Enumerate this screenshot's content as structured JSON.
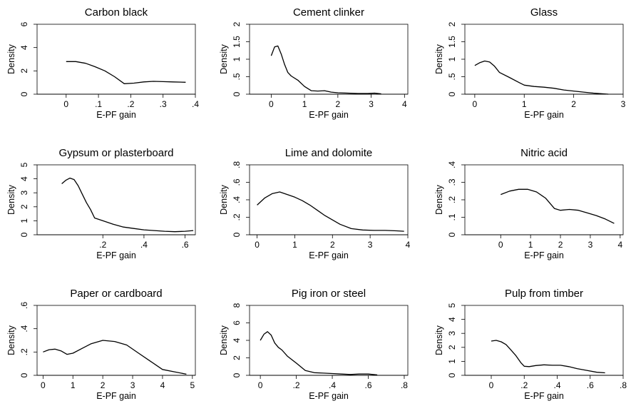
{
  "chart_data": [
    {
      "type": "line",
      "title": "Carbon black",
      "xlabel": "E-PF gain",
      "ylabel": "Density",
      "xlim": [
        -0.09,
        0.4
      ],
      "ylim": [
        0,
        6
      ],
      "xticks": [
        0,
        0.1,
        0.2,
        0.3,
        0.4
      ],
      "xtick_labels": [
        "0",
        ".1",
        ".2",
        ".3",
        ".4"
      ],
      "yticks": [
        0,
        2,
        4,
        6
      ],
      "ytick_labels": [
        "0",
        "2",
        "4",
        "6"
      ],
      "series": [
        {
          "x": [
            0,
            0.03,
            0.06,
            0.09,
            0.12,
            0.15,
            0.18,
            0.21,
            0.24,
            0.27,
            0.3,
            0.33,
            0.37
          ],
          "y": [
            2.8,
            2.8,
            2.65,
            2.35,
            2.0,
            1.5,
            0.9,
            0.95,
            1.05,
            1.1,
            1.08,
            1.05,
            1.02
          ]
        }
      ]
    },
    {
      "type": "line",
      "title": "Cement clinker",
      "xlabel": "E-PF gain",
      "ylabel": "Density",
      "xlim": [
        -0.65,
        4.1
      ],
      "ylim": [
        0,
        2
      ],
      "xticks": [
        0,
        1,
        2,
        3,
        4
      ],
      "xtick_labels": [
        "0",
        "1",
        "2",
        "3",
        "4"
      ],
      "yticks": [
        0,
        0.5,
        1,
        1.5,
        2
      ],
      "ytick_labels": [
        "0",
        ".5",
        "1",
        "1.5",
        "2"
      ],
      "series": [
        {
          "x": [
            0,
            0.1,
            0.2,
            0.3,
            0.4,
            0.5,
            0.6,
            0.8,
            1.0,
            1.2,
            1.4,
            1.6,
            1.8,
            2.0,
            2.3,
            2.6,
            2.9,
            3.1,
            3.3
          ],
          "y": [
            1.1,
            1.35,
            1.38,
            1.15,
            0.85,
            0.62,
            0.52,
            0.4,
            0.22,
            0.1,
            0.09,
            0.1,
            0.06,
            0.04,
            0.03,
            0.02,
            0.02,
            0.03,
            0.01
          ]
        }
      ]
    },
    {
      "type": "line",
      "title": "Glass",
      "xlabel": "E-PF gain",
      "ylabel": "Density",
      "xlim": [
        -0.2,
        3.0
      ],
      "ylim": [
        0,
        2
      ],
      "xticks": [
        0,
        1,
        2,
        3
      ],
      "xtick_labels": [
        "0",
        "1",
        "2",
        "3"
      ],
      "yticks": [
        0,
        0.5,
        1,
        1.5,
        2
      ],
      "ytick_labels": [
        "0",
        ".5",
        "1",
        "1.5",
        "2"
      ],
      "series": [
        {
          "x": [
            0,
            0.1,
            0.2,
            0.3,
            0.4,
            0.5,
            0.7,
            0.9,
            1.0,
            1.2,
            1.4,
            1.6,
            1.8,
            2.0,
            2.2,
            2.4,
            2.7
          ],
          "y": [
            0.82,
            0.9,
            0.95,
            0.92,
            0.8,
            0.62,
            0.48,
            0.33,
            0.26,
            0.22,
            0.2,
            0.17,
            0.12,
            0.09,
            0.06,
            0.03,
            0.0
          ]
        }
      ]
    },
    {
      "type": "line",
      "title": "Gypsum or plasterboard",
      "xlabel": "E-PF gain",
      "ylabel": "Density",
      "xlim": [
        -0.12,
        0.65
      ],
      "ylim": [
        0,
        5
      ],
      "xticks": [
        0.2,
        0.4,
        0.6
      ],
      "xtick_labels": [
        ".2",
        ".4",
        ".6"
      ],
      "yticks": [
        0,
        1,
        2,
        3,
        4,
        5
      ],
      "ytick_labels": [
        "0",
        "1",
        "2",
        "3",
        "4",
        "5"
      ],
      "series": [
        {
          "x": [
            0,
            0.02,
            0.04,
            0.06,
            0.08,
            0.1,
            0.12,
            0.14,
            0.16,
            0.2,
            0.25,
            0.3,
            0.35,
            0.4,
            0.45,
            0.5,
            0.55,
            0.6,
            0.64
          ],
          "y": [
            3.65,
            3.9,
            4.05,
            3.95,
            3.5,
            2.9,
            2.3,
            1.8,
            1.2,
            1.0,
            0.75,
            0.55,
            0.45,
            0.35,
            0.3,
            0.25,
            0.22,
            0.25,
            0.3
          ]
        }
      ]
    },
    {
      "type": "line",
      "title": "Lime and dolomite",
      "xlabel": "E-PF gain",
      "ylabel": "Density",
      "xlim": [
        -0.2,
        4.0
      ],
      "ylim": [
        0,
        0.8
      ],
      "xticks": [
        0,
        1,
        2,
        3,
        4
      ],
      "xtick_labels": [
        "0",
        "1",
        "2",
        "3",
        "4"
      ],
      "yticks": [
        0,
        0.2,
        0.4,
        0.6,
        0.8
      ],
      "ytick_labels": [
        "0",
        ".2",
        ".4",
        ".6",
        ".8"
      ],
      "series": [
        {
          "x": [
            0,
            0.2,
            0.4,
            0.6,
            0.8,
            1.0,
            1.2,
            1.4,
            1.6,
            1.8,
            2.0,
            2.2,
            2.5,
            2.8,
            3.1,
            3.4,
            3.7,
            3.9
          ],
          "y": [
            0.34,
            0.42,
            0.47,
            0.49,
            0.46,
            0.43,
            0.39,
            0.34,
            0.28,
            0.22,
            0.17,
            0.12,
            0.07,
            0.055,
            0.05,
            0.05,
            0.045,
            0.04
          ]
        }
      ]
    },
    {
      "type": "line",
      "title": "Nitric acid",
      "xlabel": "E-PF gain",
      "ylabel": "Density",
      "xlim": [
        -1.2,
        4.1
      ],
      "ylim": [
        0,
        0.4
      ],
      "xticks": [
        0,
        1,
        2,
        3,
        4
      ],
      "xtick_labels": [
        "0",
        "1",
        "2",
        "3",
        "4"
      ],
      "yticks": [
        0,
        0.1,
        0.2,
        0.3,
        0.4
      ],
      "ytick_labels": [
        "0",
        ".1",
        ".2",
        ".3",
        ".4"
      ],
      "series": [
        {
          "x": [
            0,
            0.3,
            0.6,
            0.9,
            1.2,
            1.5,
            1.8,
            2.0,
            2.3,
            2.6,
            2.9,
            3.2,
            3.5,
            3.8
          ],
          "y": [
            0.23,
            0.25,
            0.26,
            0.26,
            0.245,
            0.21,
            0.15,
            0.14,
            0.145,
            0.14,
            0.125,
            0.11,
            0.09,
            0.065
          ]
        }
      ]
    },
    {
      "type": "line",
      "title": "Paper or cardboard",
      "xlabel": "E-PF gain",
      "ylabel": "Density",
      "xlim": [
        -0.2,
        5.1
      ],
      "ylim": [
        0,
        0.6
      ],
      "xticks": [
        0,
        1,
        2,
        3,
        4,
        5
      ],
      "xtick_labels": [
        "0",
        "1",
        "2",
        "3",
        "4",
        "5"
      ],
      "yticks": [
        0,
        0.2,
        0.4,
        0.6
      ],
      "ytick_labels": [
        "0",
        ".2",
        ".4",
        ".6"
      ],
      "series": [
        {
          "x": [
            0,
            0.2,
            0.4,
            0.6,
            0.8,
            1.0,
            1.3,
            1.6,
            2.0,
            2.4,
            2.8,
            3.2,
            3.6,
            4.0,
            4.4,
            4.8
          ],
          "y": [
            0.2,
            0.22,
            0.225,
            0.21,
            0.18,
            0.19,
            0.23,
            0.27,
            0.3,
            0.29,
            0.26,
            0.19,
            0.12,
            0.05,
            0.03,
            0.01
          ]
        }
      ]
    },
    {
      "type": "line",
      "title": "Pig iron or steel",
      "xlabel": "E-PF gain",
      "ylabel": "Density",
      "xlim": [
        -0.06,
        0.82
      ],
      "ylim": [
        0,
        8
      ],
      "xticks": [
        0,
        0.2,
        0.4,
        0.6,
        0.8
      ],
      "xtick_labels": [
        "0",
        ".2",
        ".4",
        ".6",
        ".8"
      ],
      "yticks": [
        0,
        2,
        4,
        6,
        8
      ],
      "ytick_labels": [
        "0",
        "2",
        "4",
        "6",
        "8"
      ],
      "series": [
        {
          "x": [
            0,
            0.02,
            0.04,
            0.06,
            0.08,
            0.1,
            0.12,
            0.15,
            0.2,
            0.25,
            0.3,
            0.35,
            0.4,
            0.45,
            0.5,
            0.55,
            0.6,
            0.65
          ],
          "y": [
            4.0,
            4.7,
            5.0,
            4.6,
            3.7,
            3.2,
            2.9,
            2.2,
            1.4,
            0.55,
            0.3,
            0.25,
            0.2,
            0.15,
            0.1,
            0.15,
            0.15,
            0.05
          ]
        }
      ]
    },
    {
      "type": "line",
      "title": "Pulp from timber",
      "xlabel": "E-PF gain",
      "ylabel": "Density",
      "xlim": [
        -0.16,
        0.8
      ],
      "ylim": [
        0,
        5
      ],
      "xticks": [
        0,
        0.2,
        0.4,
        0.6,
        0.8
      ],
      "xtick_labels": [
        "0",
        ".2",
        ".4",
        ".6",
        ".8"
      ],
      "yticks": [
        0,
        1,
        2,
        3,
        4,
        5
      ],
      "ytick_labels": [
        "0",
        "1",
        "2",
        "3",
        "4",
        "5"
      ],
      "series": [
        {
          "x": [
            0,
            0.03,
            0.06,
            0.09,
            0.12,
            0.15,
            0.18,
            0.2,
            0.23,
            0.27,
            0.32,
            0.37,
            0.42,
            0.47,
            0.52,
            0.58,
            0.64,
            0.69
          ],
          "y": [
            2.45,
            2.5,
            2.4,
            2.2,
            1.8,
            1.4,
            0.9,
            0.65,
            0.62,
            0.7,
            0.75,
            0.72,
            0.72,
            0.62,
            0.48,
            0.35,
            0.22,
            0.18
          ]
        }
      ]
    }
  ]
}
